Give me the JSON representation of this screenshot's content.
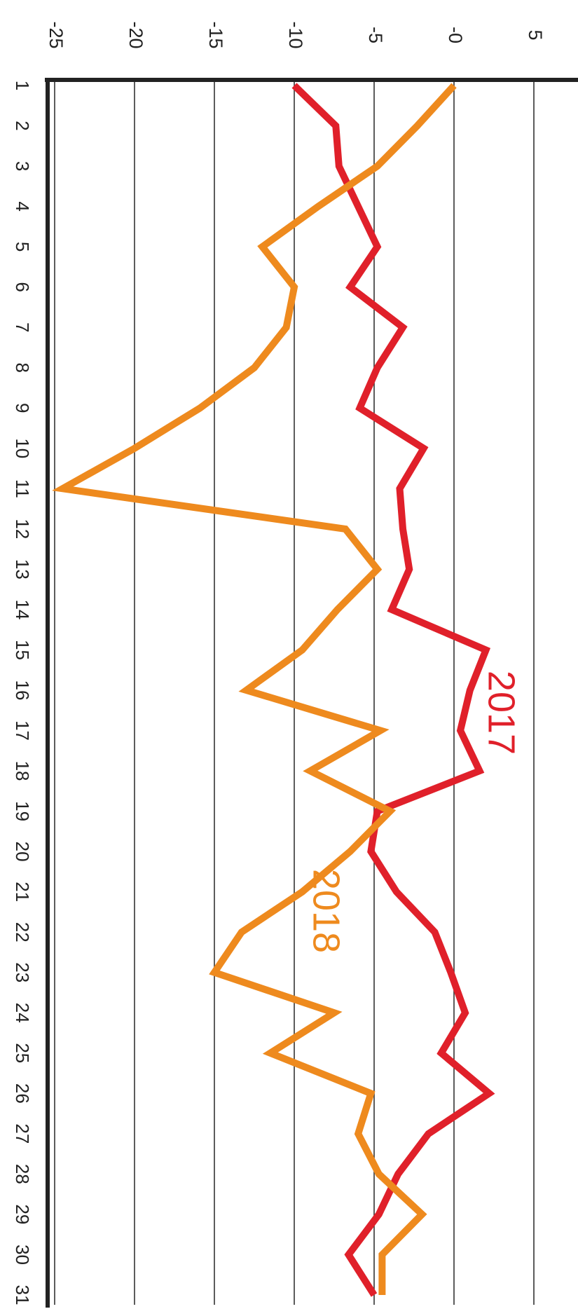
{
  "chart_data": {
    "type": "line",
    "orientation": "rotated",
    "categories": [
      "1",
      "2",
      "3",
      "4",
      "5",
      "6",
      "7",
      "8",
      "9",
      "10",
      "11",
      "12",
      "13",
      "14",
      "15",
      "16",
      "17",
      "18",
      "19",
      "20",
      "21",
      "22",
      "23",
      "24",
      "25",
      "26",
      "27",
      "28",
      "29",
      "30",
      "31"
    ],
    "series": [
      {
        "name": "2017",
        "color": "#e0202a",
        "values": [
          -10,
          -7.4,
          -7.2,
          -6,
          -4.8,
          -6.5,
          -3.2,
          -4.8,
          -5.9,
          -1.9,
          -3.4,
          -3.2,
          -2.8,
          -3.9,
          2,
          1,
          0.4,
          1.6,
          -4.8,
          -5.2,
          -3.6,
          -1.2,
          -0.2,
          0.7,
          -0.8,
          2.2,
          -1.6,
          -3.5,
          -4.7,
          -6.6,
          -5
        ]
      },
      {
        "name": "2018",
        "color": "#ee8a1e",
        "values": [
          0,
          -2.3,
          -4.8,
          -8.5,
          -12,
          -10,
          -10.5,
          -12.5,
          -15.9,
          -20,
          -24.5,
          -6.8,
          -4.8,
          -7.3,
          -9.5,
          -13,
          -4.6,
          -9,
          -4,
          -6.5,
          -9.5,
          -13.3,
          -15,
          -7.5,
          -11.5,
          -5.2,
          -6,
          -4.7,
          -2,
          -4.5,
          -4.5
        ]
      }
    ],
    "ylim": [
      -25,
      5
    ],
    "yticks": [
      -25,
      -20,
      -15,
      -10,
      -5,
      {
        "value": 0,
        "label": "-0"
      },
      5
    ],
    "grid": true
  }
}
